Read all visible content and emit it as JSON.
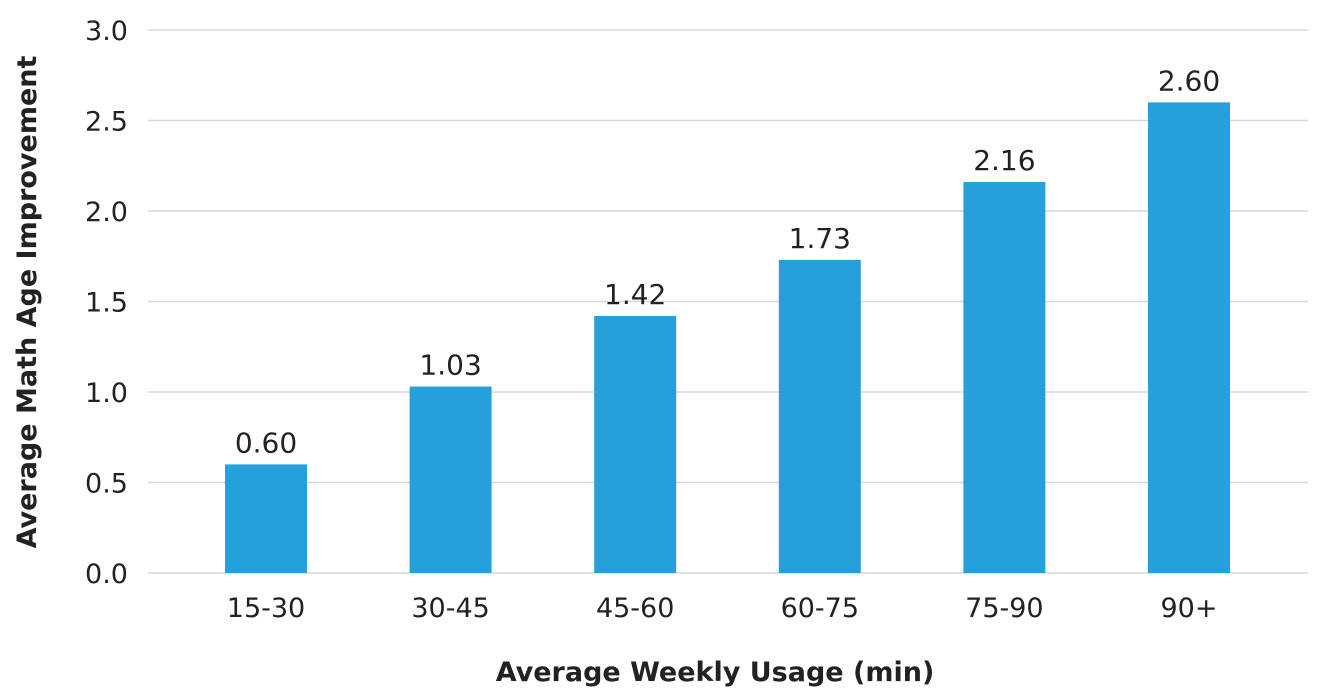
{
  "chart_data": {
    "type": "bar",
    "categories": [
      "15-30",
      "30-45",
      "45-60",
      "60-75",
      "75-90",
      "90+"
    ],
    "values": [
      0.6,
      1.03,
      1.42,
      1.73,
      2.16,
      2.6
    ],
    "data_labels": [
      "0.60",
      "1.03",
      "1.42",
      "1.73",
      "2.16",
      "2.60"
    ],
    "xlabel": "Average Weekly Usage (min)",
    "ylabel": "Average Math  Age Improvement",
    "ylim": [
      0,
      3.0
    ],
    "y_ticks": [
      "0.0",
      "0.5",
      "1.0",
      "1.5",
      "2.0",
      "2.5",
      "3.0"
    ],
    "y_tick_values": [
      0,
      0.5,
      1.0,
      1.5,
      2.0,
      2.5,
      3.0
    ],
    "grid": true,
    "legend": "none",
    "colors": {
      "bar": "#25a0da",
      "grid": "#d8d8d8",
      "text": "#222222"
    }
  }
}
